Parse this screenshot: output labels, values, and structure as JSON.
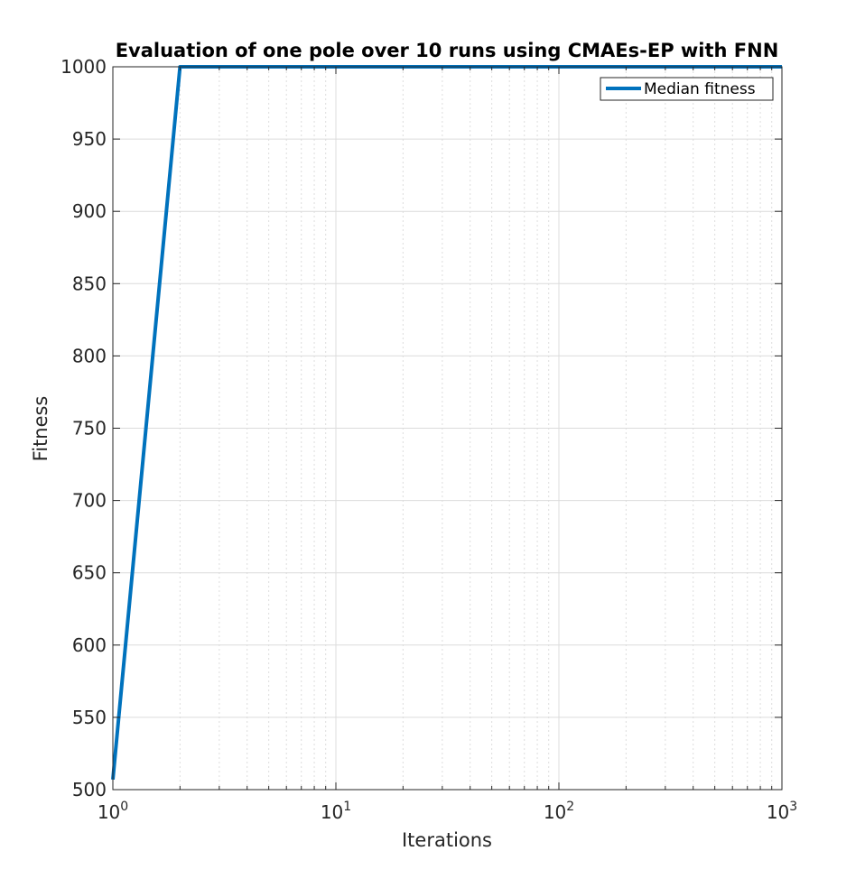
{
  "chart_data": {
    "type": "line",
    "title": "Evaluation of one pole over 10 runs using CMAEs-EP with FNN",
    "xlabel": "Iterations",
    "ylabel": "Fitness",
    "xscale": "log",
    "xlim": [
      1,
      1000
    ],
    "ylim": [
      500,
      1000
    ],
    "grid": true,
    "minor_grid": true,
    "legend_position": "top-right",
    "x_ticks": [
      {
        "base": "10",
        "exp": "0",
        "value": 1
      },
      {
        "base": "10",
        "exp": "1",
        "value": 10
      },
      {
        "base": "10",
        "exp": "2",
        "value": 100
      },
      {
        "base": "10",
        "exp": "3",
        "value": 1000
      }
    ],
    "y_ticks": [
      500,
      550,
      600,
      650,
      700,
      750,
      800,
      850,
      900,
      950,
      1000
    ],
    "series": [
      {
        "name": "Median fitness",
        "color": "#0072BD",
        "x": [
          1,
          2,
          3,
          10,
          100,
          1000
        ],
        "y": [
          507,
          1000,
          1000,
          1000,
          1000,
          1000
        ]
      }
    ]
  }
}
